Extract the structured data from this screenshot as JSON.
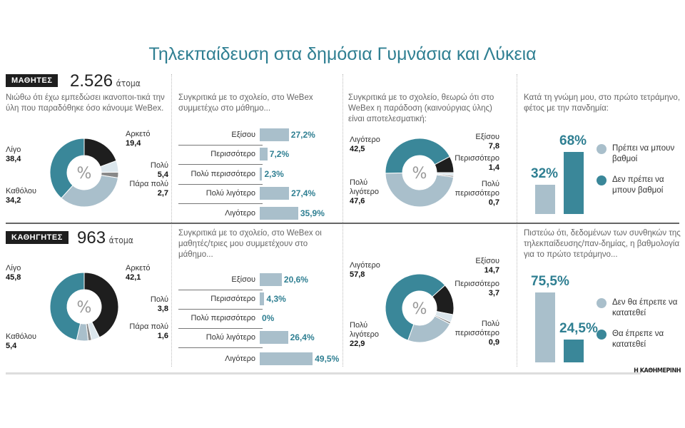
{
  "title": "Τηλεκπαίδευση στα δημόσια Γυμνάσια και Λύκεια",
  "source": "Η ΚΑΘΗΜΕΡΙΝΗ",
  "colors": {
    "teal": "#3a8799",
    "black": "#1e1e1e",
    "grey": "#a9bfcb",
    "pale": "#dbe6ec",
    "line": "#888888"
  },
  "students": {
    "badge": "ΜΑΘΗΤΕΣ",
    "count": "2.526",
    "unit": "άτομα"
  },
  "teachers": {
    "badge": "ΚΑΘΗΓΗΤΕΣ",
    "count": "963",
    "unit": "άτομα"
  },
  "chart_data": [
    {
      "id": "s1",
      "type": "pie",
      "question": "Νιώθω ότι έχω εμπεδώσει ικανοποι-τικά την ύλη που παραδόθηκε όσο κάνουμε WeBex.",
      "center": "%",
      "slices": [
        {
          "label": "Αρκετό",
          "value": 19.4,
          "color": "black"
        },
        {
          "label": "Πολύ",
          "value": 5.4,
          "color": "pale"
        },
        {
          "label": "Πάρα πολύ",
          "value": 2.7,
          "color": "line"
        },
        {
          "label": "Καθόλου",
          "value": 34.2,
          "color": "grey"
        },
        {
          "label": "Λίγο",
          "value": 38.4,
          "color": "teal"
        }
      ]
    },
    {
      "id": "s2",
      "type": "bar",
      "question": "Συγκριτικά με το σχολείο, στο WeBex συμμετέχω στο μάθημο...",
      "categories": [
        "Εξίσου",
        "Περισσότερο",
        "Πολύ περισσότερο",
        "Πολύ λιγότερο",
        "Λιγότερο"
      ],
      "values": [
        27.2,
        7.2,
        2.3,
        27.4,
        35.9
      ],
      "labels": [
        "27,2%",
        "7,2%",
        "2,3%",
        "27,4%",
        "35,9%"
      ]
    },
    {
      "id": "s3",
      "type": "pie",
      "question": "Συγκριτικά με το σχολείο, θεωρώ ότι στο WeBex η παράδοση (καινούργιας ύλης) είναι αποτελεσματική:",
      "center": "%",
      "slices": [
        {
          "label": "Εξίσου",
          "value": 7.8,
          "color": "black"
        },
        {
          "label": "Περισσότερο",
          "value": 1.4,
          "color": "pale"
        },
        {
          "label": "Πολύ περισσότερο",
          "value": 0.7,
          "color": "line"
        },
        {
          "label": "Πολύ λιγότερο",
          "value": 47.6,
          "color": "grey"
        },
        {
          "label": "Λιγότερο",
          "value": 42.5,
          "color": "teal"
        }
      ]
    },
    {
      "id": "s4",
      "type": "bar",
      "question": "Κατά τη γνώμη μου, στο πρώτο τετράμηνο, φέτος με την πανδημία:",
      "categories": [
        "Πρέπει να μπουν βαθμοί",
        "Δεν πρέπει να μπουν βαθμοί"
      ],
      "values": [
        32,
        68
      ],
      "labels": [
        "32%",
        "68%"
      ],
      "colors": [
        "grey",
        "teal"
      ]
    },
    {
      "id": "t1",
      "type": "pie",
      "question": "",
      "center": "%",
      "slices": [
        {
          "label": "Αρκετό",
          "value": 42.1,
          "color": "black"
        },
        {
          "label": "Πολύ",
          "value": 3.8,
          "color": "pale"
        },
        {
          "label": "Πάρα πολύ",
          "value": 1.6,
          "color": "line"
        },
        {
          "label": "Καθόλου",
          "value": 5.4,
          "color": "grey"
        },
        {
          "label": "Λίγο",
          "value": 45.8,
          "color": "teal"
        }
      ]
    },
    {
      "id": "t2",
      "type": "bar",
      "question": "Συγκριτικά με το σχολείο, στο WeBex οι μαθητές/τριες μου συμμετέχουν στο μάθημο...",
      "categories": [
        "Εξίσου",
        "Περισσότερο",
        "Πολύ περισσότερο",
        "Πολύ λιγότερο",
        "Λιγότερο"
      ],
      "values": [
        20.6,
        4.3,
        0,
        26.4,
        49.5
      ],
      "labels": [
        "20,6%",
        "4,3%",
        "0%",
        "26,4%",
        "49,5%"
      ]
    },
    {
      "id": "t3",
      "type": "pie",
      "question": "",
      "center": "%",
      "slices": [
        {
          "label": "Εξίσου",
          "value": 14.7,
          "color": "black"
        },
        {
          "label": "Περισσότερο",
          "value": 3.7,
          "color": "pale"
        },
        {
          "label": "Πολύ περισσότερο",
          "value": 0.9,
          "color": "line"
        },
        {
          "label": "Πολύ λιγότερο",
          "value": 22.9,
          "color": "grey"
        },
        {
          "label": "Λιγότερο",
          "value": 57.8,
          "color": "teal"
        }
      ]
    },
    {
      "id": "t4",
      "type": "bar",
      "question": "Πιστεύω ότι, δεδομένων των συνθηκών της τηλεκπαίδευσης/παν-δημίας, η βαθμολογία για το πρώτο τετράμηνο...",
      "categories": [
        "Δεν θα έπρεπε να κατατεθεί",
        "Θα έπρεπε να κατατεθεί"
      ],
      "values": [
        75.5,
        24.5
      ],
      "labels": [
        "75,5%",
        "24,5%"
      ],
      "colors": [
        "grey",
        "teal"
      ]
    }
  ]
}
